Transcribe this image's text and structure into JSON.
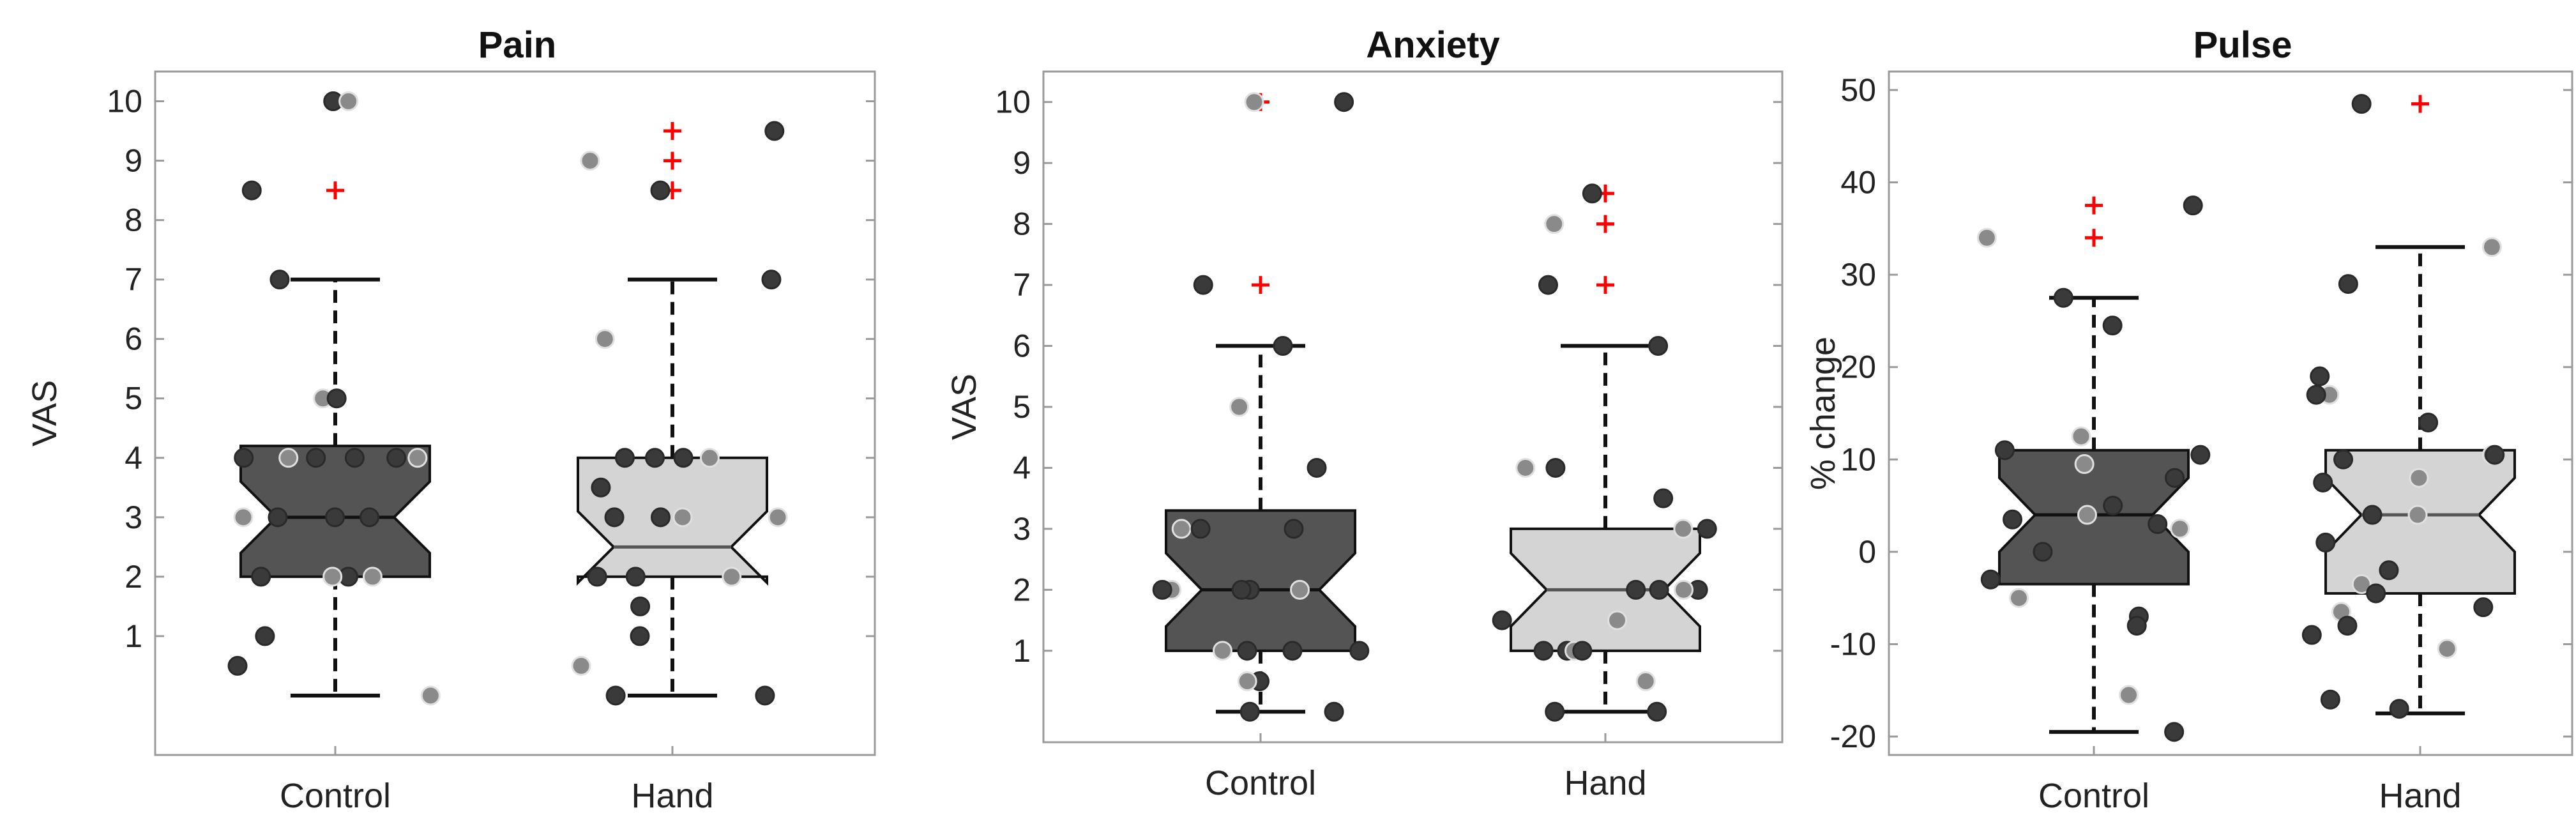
{
  "chart_data": [
    {
      "type": "boxplot",
      "title": "Pain",
      "ylabel": "VAS",
      "ylim": [
        -1,
        10.5
      ],
      "yticks": [
        1,
        2,
        3,
        4,
        5,
        6,
        7,
        8,
        9,
        10
      ],
      "categories": [
        "Control",
        "Hand"
      ],
      "colors": {
        "Control": "#545454",
        "Hand": "#d4d4d4",
        "outlier": "#ff0000",
        "point_dark": "#3a3a3a",
        "point_light": "#8a8a8a"
      },
      "boxes": [
        {
          "category": "Control",
          "q1": 2.0,
          "median": 3.0,
          "q3": 4.2,
          "notch_low": 2.4,
          "notch_high": 3.6,
          "whisker_low": 0,
          "whisker_high": 7.0,
          "outliers": [
            8.5,
            10.0
          ]
        },
        {
          "category": "Hand",
          "q1": 2.0,
          "median": 2.5,
          "q3": 4.0,
          "notch_low": 1.9,
          "notch_high": 3.1,
          "whisker_low": 0,
          "whisker_high": 7.0,
          "outliers": [
            8.5,
            9.0,
            9.5
          ]
        }
      ],
      "points": [
        {
          "category": "Control",
          "values": [
            10.0,
            10.0,
            8.5,
            7.0,
            5.0,
            5.0,
            4.0,
            4.0,
            4.0,
            4.0,
            4.0,
            4.0,
            3.0,
            3.0,
            3.0,
            3.0,
            2.0,
            2.0,
            2.0,
            2.0,
            1.0,
            0.5,
            0
          ]
        },
        {
          "category": "Hand",
          "values": [
            9.5,
            9.0,
            8.5,
            7.0,
            6.0,
            4.0,
            4.0,
            4.0,
            4.0,
            3.5,
            3.0,
            3.0,
            3.0,
            3.0,
            2.0,
            2.0,
            2.0,
            1.5,
            1.0,
            0.5,
            0,
            0
          ]
        }
      ]
    },
    {
      "type": "boxplot",
      "title": "Anxiety",
      "ylabel": "VAS",
      "ylim": [
        -0.5,
        10.5
      ],
      "yticks": [
        1,
        2,
        3,
        4,
        5,
        6,
        7,
        8,
        9,
        10
      ],
      "categories": [
        "Control",
        "Hand"
      ],
      "colors": {
        "Control": "#545454",
        "Hand": "#d4d4d4",
        "outlier": "#ff0000",
        "point_dark": "#3a3a3a",
        "point_light": "#8a8a8a"
      },
      "boxes": [
        {
          "category": "Control",
          "q1": 1.0,
          "median": 2.0,
          "q3": 3.3,
          "notch_low": 1.4,
          "notch_high": 2.6,
          "whisker_low": 0,
          "whisker_high": 6.0,
          "outliers": [
            7.0,
            10.0
          ]
        },
        {
          "category": "Hand",
          "q1": 1.0,
          "median": 2.0,
          "q3": 3.0,
          "notch_low": 1.4,
          "notch_high": 2.6,
          "whisker_low": 0,
          "whisker_high": 6.0,
          "outliers": [
            7.0,
            8.0,
            8.5
          ]
        }
      ],
      "points": [
        {
          "category": "Control",
          "values": [
            10.0,
            10.0,
            7.0,
            6.0,
            5.0,
            4.0,
            3.0,
            3.0,
            3.0,
            2.0,
            2.0,
            2.0,
            2.0,
            2.0,
            1.0,
            1.0,
            1.0,
            1.0,
            0.5,
            0.5,
            0,
            0
          ]
        },
        {
          "category": "Hand",
          "values": [
            8.5,
            8.0,
            7.0,
            6.0,
            4.0,
            4.0,
            3.5,
            3.0,
            3.0,
            2.0,
            2.0,
            2.0,
            2.0,
            1.5,
            1.5,
            1.0,
            1.0,
            1.0,
            1.0,
            0.5,
            0,
            0
          ]
        }
      ]
    },
    {
      "type": "boxplot",
      "title": "Pulse",
      "ylabel": "% change",
      "ylim": [
        -22,
        52
      ],
      "yticks": [
        -20,
        -10,
        0,
        10,
        20,
        30,
        40,
        50
      ],
      "categories": [
        "Control",
        "Hand"
      ],
      "colors": {
        "Control": "#545454",
        "Hand": "#d4d4d4",
        "outlier": "#ff0000",
        "point_dark": "#3a3a3a",
        "point_light": "#8a8a8a"
      },
      "boxes": [
        {
          "category": "Control",
          "q1": -3.5,
          "median": 4.0,
          "q3": 11.0,
          "notch_low": 0.0,
          "notch_high": 8.0,
          "whisker_low": -19.5,
          "whisker_high": 27.5,
          "outliers": [
            34.0,
            37.5
          ]
        },
        {
          "category": "Hand",
          "q1": -4.5,
          "median": 4.0,
          "q3": 11.0,
          "notch_low": 0.0,
          "notch_high": 8.0,
          "whisker_low": -17.5,
          "whisker_high": 33.0,
          "outliers": [
            48.5
          ]
        }
      ],
      "points": [
        {
          "category": "Control",
          "values": [
            37.5,
            34.0,
            27.5,
            24.5,
            12.5,
            11.0,
            10.5,
            9.5,
            8.0,
            5.0,
            4.0,
            3.5,
            3.0,
            2.5,
            0.0,
            -3.0,
            -5.0,
            -7.0,
            -8.0,
            -15.5,
            -19.5
          ]
        },
        {
          "category": "Hand",
          "values": [
            48.5,
            33.0,
            29.0,
            19.0,
            17.0,
            17.0,
            14.0,
            10.5,
            10.5,
            10.0,
            8.0,
            7.5,
            4.0,
            4.0,
            1.0,
            -2.0,
            -3.5,
            -4.5,
            -6.0,
            -6.5,
            -8.0,
            -9.0,
            -10.5,
            -16.0,
            -17.0
          ]
        }
      ]
    }
  ]
}
